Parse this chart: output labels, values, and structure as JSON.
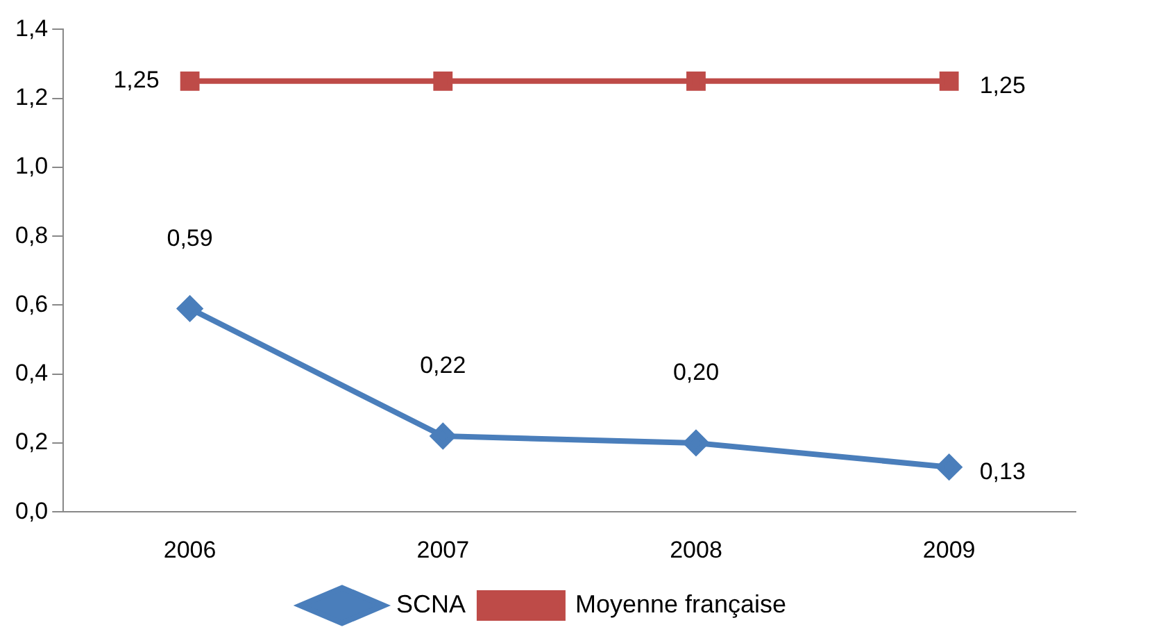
{
  "chart_data": {
    "type": "line",
    "categories": [
      "2006",
      "2007",
      "2008",
      "2009"
    ],
    "series": [
      {
        "name": "SCNA",
        "color": "#4a7ebb",
        "values": [
          0.59,
          0.22,
          0.2,
          0.13
        ],
        "marker": "diamond",
        "value_labels": [
          "0,59",
          "0,22",
          "0,20",
          "0,13"
        ]
      },
      {
        "name": "Moyenne française",
        "color": "#be4b48",
        "values": [
          1.25,
          1.25,
          1.25,
          1.25
        ],
        "marker": "square",
        "value_labels": [
          "1,25",
          null,
          null,
          "1,25"
        ]
      }
    ],
    "ylim": [
      0,
      1.4
    ],
    "yticks": [
      {
        "value": 0,
        "label": "0,0"
      },
      {
        "value": 0.2,
        "label": "0,2"
      },
      {
        "value": 0.4,
        "label": "0,4"
      },
      {
        "value": 0.6,
        "label": "0,6"
      },
      {
        "value": 0.8,
        "label": "0,8"
      },
      {
        "value": 1,
        "label": "1,0"
      },
      {
        "value": 1.2,
        "label": "1,2"
      },
      {
        "value": 1.4,
        "label": "1,4"
      }
    ],
    "grid": false,
    "legend": "bottom"
  }
}
